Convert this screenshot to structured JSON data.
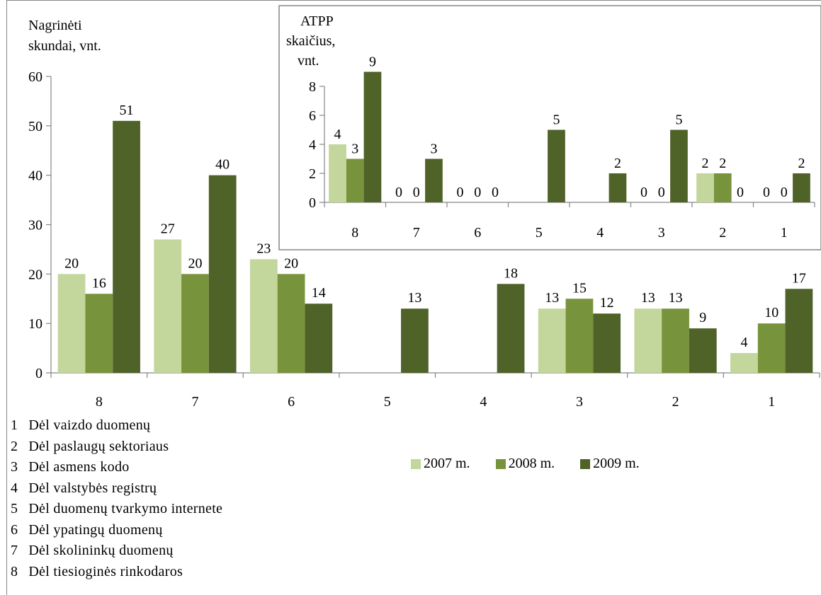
{
  "colors": {
    "y2007": "#c3d69b",
    "y2008": "#77933c",
    "y2009": "#4f6228",
    "axis": "#868686"
  },
  "chart_data": [
    {
      "type": "bar",
      "ylabel_line1": "Nagrinėti",
      "ylabel_line2": "skundai, vnt.",
      "categories": [
        "8",
        "7",
        "6",
        "5",
        "4",
        "3",
        "2",
        "1"
      ],
      "ylim": [
        0,
        60
      ],
      "yticks": [
        0,
        10,
        20,
        30,
        40,
        50,
        60
      ],
      "series": [
        {
          "name": "2007 m.",
          "values": [
            20,
            27,
            23,
            null,
            null,
            13,
            13,
            4
          ]
        },
        {
          "name": "2008 m.",
          "values": [
            16,
            20,
            20,
            null,
            null,
            15,
            13,
            10
          ]
        },
        {
          "name": "2009 m.",
          "values": [
            51,
            40,
            14,
            13,
            18,
            12,
            9,
            17
          ]
        }
      ],
      "grid": false
    },
    {
      "type": "bar",
      "ylabel_line1": "ATPP",
      "ylabel_line2": "skaičius,",
      "ylabel_line3": "vnt.",
      "categories": [
        "8",
        "7",
        "6",
        "5",
        "4",
        "3",
        "2",
        "1"
      ],
      "ylim": [
        0,
        8
      ],
      "yticks": [
        0,
        2,
        4,
        6,
        8
      ],
      "series": [
        {
          "name": "2007 m.",
          "values": [
            4,
            0,
            0,
            null,
            null,
            0,
            2,
            0
          ]
        },
        {
          "name": "2008 m.",
          "values": [
            3,
            0,
            0,
            null,
            null,
            0,
            2,
            0
          ]
        },
        {
          "name": "2009 m.",
          "values": [
            9,
            3,
            0,
            5,
            2,
            5,
            0,
            2
          ]
        }
      ],
      "grid": false
    }
  ],
  "category_legend": [
    {
      "num": "1",
      "label": "Dėl vaizdo duomenų"
    },
    {
      "num": "2",
      "label": "Dėl paslaugų sektoriaus"
    },
    {
      "num": "3",
      "label": "Dėl asmens kodo"
    },
    {
      "num": "4",
      "label": "Dėl valstybės registrų"
    },
    {
      "num": "5",
      "label": "Dėl duomenų tvarkymo internete"
    },
    {
      "num": "6",
      "label": "Dėl ypatingų duomenų"
    },
    {
      "num": "7",
      "label": "Dėl skolininkų duomenų"
    },
    {
      "num": "8",
      "label": "Dėl tiesioginės rinkodaros"
    }
  ],
  "series_legend": [
    {
      "label": "2007 m.",
      "color": "#c3d69b"
    },
    {
      "label": "2008 m.",
      "color": "#77933c"
    },
    {
      "label": "2009 m.",
      "color": "#4f6228"
    }
  ]
}
